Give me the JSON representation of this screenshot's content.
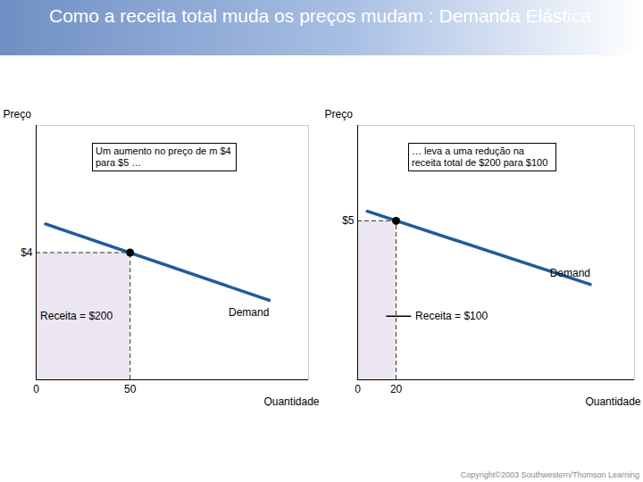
{
  "title": "Como a receita total muda os preços mudam : Demanda Elástica",
  "caption": "Copyright©2003 Southwestern/Thomson Learning",
  "chart_data": [
    {
      "type": "line",
      "annotation": "Um aumento no preço de m $4 para $5 …",
      "xlabel": "Quantidade",
      "ylabel": "Preço",
      "x": [
        5,
        124
      ],
      "series": [
        {
          "name": "Demand",
          "color": "#1f5a9e",
          "values": [
            4.9,
            2.5
          ]
        }
      ],
      "point": {
        "x": 50,
        "y": 4
      },
      "revenue_label": "Receita = $200",
      "xlim": [
        0,
        145
      ],
      "ylim": [
        0,
        8
      ],
      "xticks": [
        0,
        50
      ],
      "yticks": [
        {
          "value": 4,
          "label": "$4"
        }
      ]
    },
    {
      "type": "line",
      "annotation": "… leva a uma redução na receita total de $200 para $100",
      "xlabel": "Quantidade",
      "ylabel": "Preço",
      "x": [
        5,
        121
      ],
      "series": [
        {
          "name": "Demand",
          "color": "#1f5a9e",
          "values": [
            5.3,
            3.0
          ]
        }
      ],
      "point": {
        "x": 20,
        "y": 5
      },
      "revenue_label": "Receita = $100",
      "xlim": [
        0,
        144
      ],
      "ylim": [
        0,
        8
      ],
      "xticks": [
        0,
        20
      ],
      "yticks": [
        {
          "value": 5,
          "label": "$5"
        }
      ]
    }
  ]
}
